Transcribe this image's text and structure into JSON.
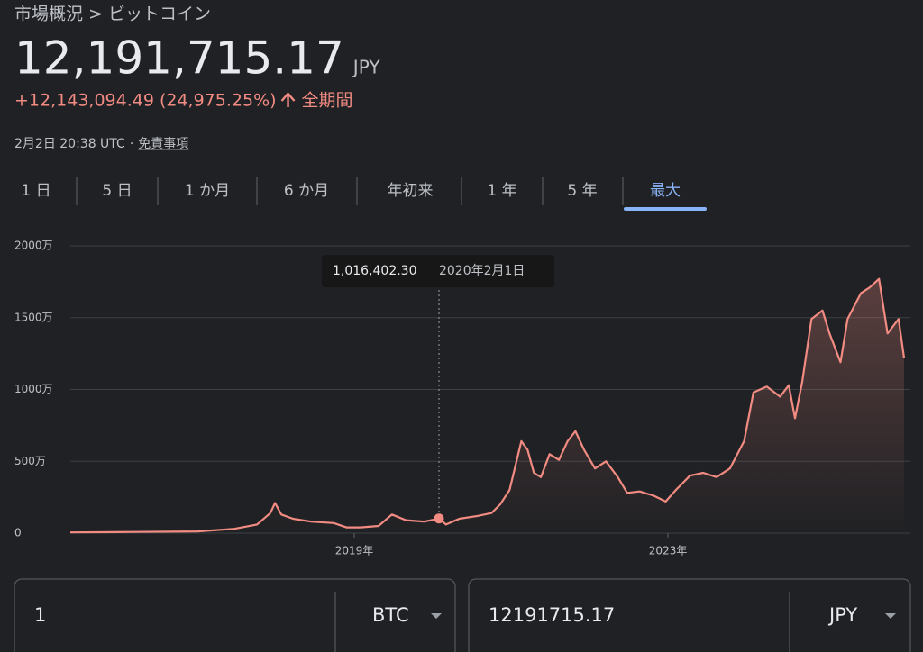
{
  "breadcrumb": {
    "parent": "市場概況",
    "separator": ">",
    "current": "ビットコイン"
  },
  "price": {
    "value": "12,191,715.17",
    "currency": "JPY",
    "change": "+12,143,094.49 (24,975.25%)",
    "period": "全期間"
  },
  "timestamp": {
    "time": "2月2日 20:38 UTC",
    "separator": "·",
    "disclaimer": "免責事項"
  },
  "tabs": [
    "1 日",
    "5 日",
    "1 か月",
    "6 か月",
    "年初来",
    "1 年",
    "5 年",
    "最大"
  ],
  "active_tab": 7,
  "chart_data": {
    "type": "line",
    "x": [
      2015.38,
      2016.2,
      2017.0,
      2017.47,
      2017.76,
      2017.93,
      2017.99,
      2018.07,
      2018.22,
      2018.45,
      2018.74,
      2018.9,
      2019.08,
      2019.31,
      2019.48,
      2019.66,
      2019.89,
      2020.08,
      2020.17,
      2020.34,
      2020.57,
      2020.75,
      2020.86,
      2020.98,
      2021.13,
      2021.21,
      2021.29,
      2021.38,
      2021.49,
      2021.61,
      2021.72,
      2021.82,
      2021.93,
      2022.07,
      2022.21,
      2022.36,
      2022.48,
      2022.64,
      2022.82,
      2022.97,
      2023.1,
      2023.28,
      2023.45,
      2023.62,
      2023.79,
      2023.97,
      2024.09,
      2024.26,
      2024.43,
      2024.54,
      2024.62,
      2024.71,
      2024.83,
      2024.97,
      2025.06,
      2025.2,
      2025.29,
      2025.46,
      2025.57,
      2025.69,
      2025.8,
      2025.94,
      2026.01
    ],
    "series": [
      {
        "color": "#f28b82",
        "values": [
          5,
          8,
          12,
          30,
          60,
          140,
          210,
          130,
          100,
          80,
          70,
          40,
          40,
          50,
          130,
          90,
          80,
          101.64023,
          60,
          100,
          120,
          140,
          200,
          300,
          640,
          580,
          420,
          390,
          550,
          510,
          640,
          710,
          580,
          450,
          500,
          390,
          280,
          290,
          260,
          220,
          300,
          400,
          420,
          390,
          450,
          640,
          980,
          1020,
          950,
          1030,
          800,
          1050,
          1490,
          1550,
          1390,
          1190,
          1490,
          1670,
          1710,
          1770,
          1390,
          1490,
          1219.171517
        ]
      }
    ],
    "xlim": [
      2015.38,
      2026.01
    ],
    "ylim": [
      0,
      2000
    ],
    "xticks": [
      {
        "value": 2019,
        "label": "2019年"
      },
      {
        "value": 2023,
        "label": "2023年"
      }
    ],
    "yticks": [
      0,
      {
        "value": 500,
        "label": "500万"
      },
      {
        "value": 1000,
        "label": "1000万"
      },
      {
        "value": 1500,
        "label": "1500万"
      },
      {
        "value": 2000,
        "label": "2000万"
      }
    ],
    "grid": true,
    "tooltip": {
      "point": 17,
      "value_label": "1,016,402.30",
      "date": "2020年2月1日"
    }
  },
  "converter": {
    "from_amount": "1",
    "from_currency": "BTC",
    "to_amount": "12191715.17",
    "to_currency": "JPY"
  }
}
